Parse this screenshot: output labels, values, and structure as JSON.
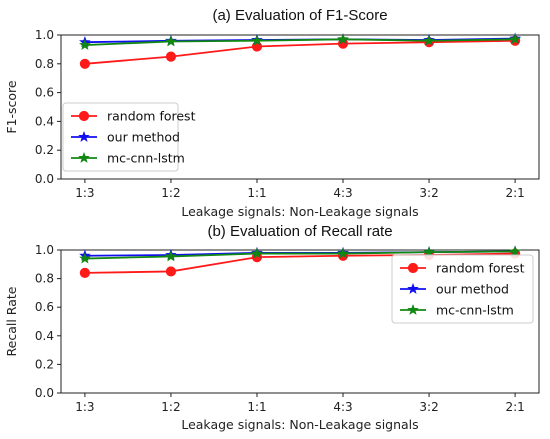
{
  "chart_data": [
    {
      "type": "line",
      "title": "(a) Evaluation of F1-Score",
      "xlabel": "Leakage signals: Non-Leakage signals",
      "ylabel": "F1-score",
      "categories": [
        "1:3",
        "1:2",
        "1:1",
        "4:3",
        "3:2",
        "2:1"
      ],
      "ylim": [
        0.0,
        1.0
      ],
      "yticks": [
        "0.0",
        "0.2",
        "0.4",
        "0.6",
        "0.8",
        "1.0"
      ],
      "legend_position": "center-left",
      "series": [
        {
          "name": "random forest",
          "color": "#ff1a1a",
          "marker": "circle",
          "values": [
            0.8,
            0.85,
            0.92,
            0.94,
            0.95,
            0.96
          ]
        },
        {
          "name": "our method",
          "color": "#1010ee",
          "marker": "star",
          "values": [
            0.95,
            0.96,
            0.965,
            0.97,
            0.965,
            0.975
          ]
        },
        {
          "name": "mc-cnn-lstm",
          "color": "#118811",
          "marker": "star",
          "values": [
            0.93,
            0.955,
            0.96,
            0.97,
            0.96,
            0.97
          ]
        }
      ]
    },
    {
      "type": "line",
      "title": "(b) Evaluation of Recall rate",
      "xlabel": "Leakage signals: Non-Leakage signals",
      "ylabel": "Recall Rate",
      "categories": [
        "1:3",
        "1:2",
        "1:1",
        "4:3",
        "3:2",
        "2:1"
      ],
      "ylim": [
        0.0,
        1.0
      ],
      "yticks": [
        "0.0",
        "0.2",
        "0.4",
        "0.6",
        "0.8",
        "1.0"
      ],
      "legend_position": "top-right",
      "series": [
        {
          "name": "random forest",
          "color": "#ff1a1a",
          "marker": "circle",
          "values": [
            0.84,
            0.85,
            0.95,
            0.96,
            0.965,
            0.975
          ]
        },
        {
          "name": "our method",
          "color": "#1010ee",
          "marker": "star",
          "values": [
            0.96,
            0.965,
            0.98,
            0.98,
            0.985,
            0.99
          ]
        },
        {
          "name": "mc-cnn-lstm",
          "color": "#118811",
          "marker": "star",
          "values": [
            0.94,
            0.955,
            0.975,
            0.975,
            0.985,
            0.99
          ]
        }
      ]
    }
  ]
}
